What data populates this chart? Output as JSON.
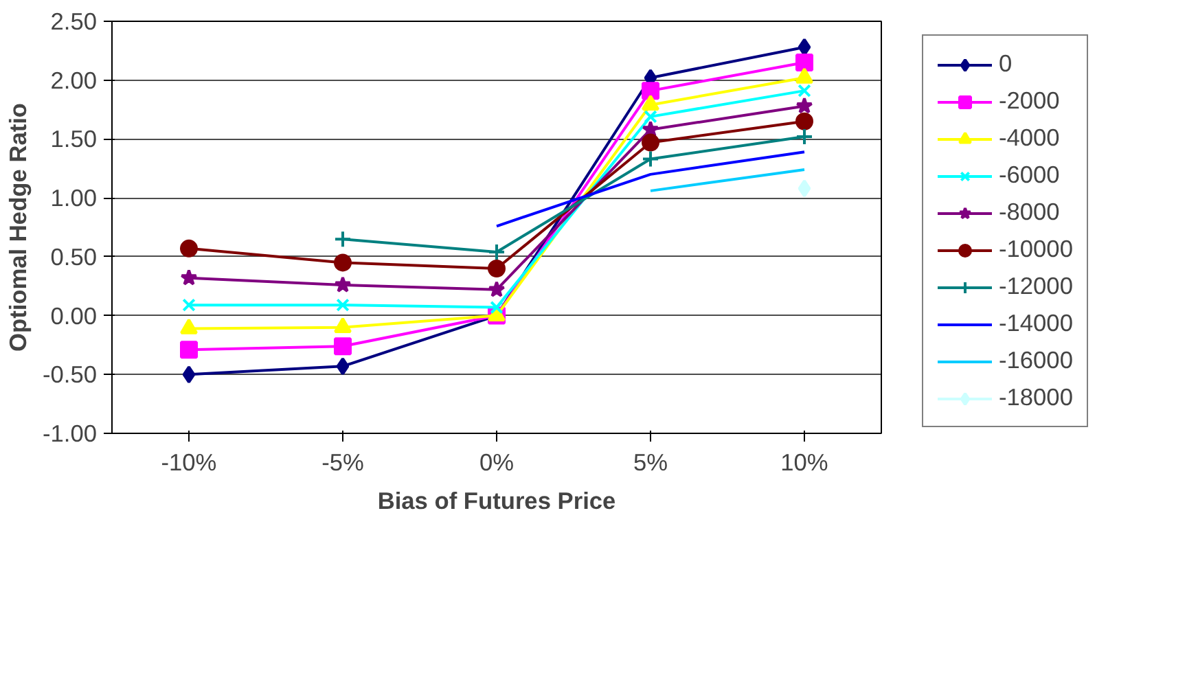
{
  "chart_data": {
    "type": "line",
    "xlabel": "Bias of Futures Price",
    "ylabel": "Optiomal Hedge Ratio",
    "categories": [
      "-10%",
      "-5%",
      "0%",
      "5%",
      "10%"
    ],
    "ylim": [
      -1.0,
      2.5
    ],
    "yticks": [
      {
        "value": -1.0,
        "label": "-1.00"
      },
      {
        "value": -0.5,
        "label": "-0.50"
      },
      {
        "value": 0.0,
        "label": "0.00"
      },
      {
        "value": 0.5,
        "label": "0.50"
      },
      {
        "value": 1.0,
        "label": "1.00"
      },
      {
        "value": 1.5,
        "label": "1.50"
      },
      {
        "value": 2.0,
        "label": "2.00"
      },
      {
        "value": 2.5,
        "label": "2.50"
      }
    ],
    "grid": "y",
    "legend": "right",
    "line_style": "solid",
    "series": [
      {
        "name": "0",
        "color": "#000080",
        "marker": "diamond",
        "values": [
          -0.5,
          -0.43,
          0.0,
          2.02,
          2.28
        ]
      },
      {
        "name": "-2000",
        "color": "#ff00ff",
        "marker": "square",
        "values": [
          -0.29,
          -0.26,
          0.0,
          1.91,
          2.15
        ]
      },
      {
        "name": "-4000",
        "color": "#ffff00",
        "marker": "triangle",
        "values": [
          -0.11,
          -0.1,
          0.0,
          1.79,
          2.02
        ]
      },
      {
        "name": "-6000",
        "color": "#00ffff",
        "marker": "x",
        "values": [
          0.09,
          0.09,
          0.07,
          1.69,
          1.91
        ]
      },
      {
        "name": "-8000",
        "color": "#800080",
        "marker": "star",
        "values": [
          0.32,
          0.26,
          0.22,
          1.58,
          1.78
        ]
      },
      {
        "name": "-10000",
        "color": "#800000",
        "marker": "circle",
        "values": [
          0.57,
          0.45,
          0.4,
          1.47,
          1.65
        ]
      },
      {
        "name": "-12000",
        "color": "#008080",
        "marker": "cross",
        "values": [
          null,
          0.65,
          0.54,
          1.33,
          1.52
        ]
      },
      {
        "name": "-14000",
        "color": "#0000ff",
        "marker": "none",
        "values": [
          null,
          null,
          0.76,
          1.2,
          1.39
        ]
      },
      {
        "name": "-16000",
        "color": "#00ccff",
        "marker": "none",
        "values": [
          null,
          null,
          null,
          1.06,
          1.24
        ]
      },
      {
        "name": "-18000",
        "color": "#ccffff",
        "marker": "diamond",
        "values": [
          null,
          null,
          null,
          null,
          1.08
        ]
      }
    ]
  }
}
